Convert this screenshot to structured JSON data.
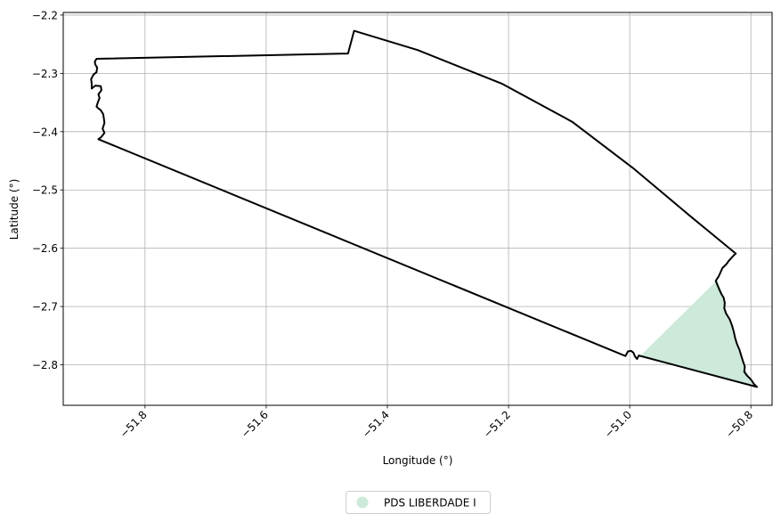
{
  "map": {
    "xlabel": "Longitude (°)",
    "ylabel": "Latitude (°)",
    "xlim": [
      -51.935,
      -50.765
    ],
    "ylim": [
      -2.8695,
      -2.1955
    ],
    "grid": true,
    "x_ticks": [
      -51.8,
      -51.6,
      -51.4,
      -51.2,
      -51.0,
      -50.8
    ],
    "x_tick_labels": [
      "−51.8",
      "−51.6",
      "−51.4",
      "−51.2",
      "−51.0",
      "−50.8"
    ],
    "y_ticks": [
      -2.2,
      -2.3,
      -2.4,
      -2.5,
      -2.6,
      -2.7,
      -2.8
    ],
    "y_tick_labels": [
      "−2.2",
      "−2.3",
      "−2.4",
      "−2.5",
      "−2.6",
      "−2.7",
      "−2.8"
    ],
    "legend": {
      "placement": "bottom-center",
      "entries": [
        {
          "label": "PDS LIBERDADE I",
          "color": "#cce9da",
          "marker": "circle"
        }
      ]
    }
  },
  "chart_data": {
    "type": "map",
    "xlabel": "Longitude (°)",
    "ylabel": "Latitude (°)",
    "xlim": [
      -51.935,
      -50.765
    ],
    "ylim": [
      -2.8695,
      -2.1955
    ],
    "grid": true,
    "boundary": {
      "stroke": "#000000",
      "coordinates": [
        [
          -51.88,
          -2.275
        ],
        [
          -51.465,
          -2.266
        ],
        [
          -51.455,
          -2.227
        ],
        [
          -51.35,
          -2.26
        ],
        [
          -51.21,
          -2.318
        ],
        [
          -51.095,
          -2.383
        ],
        [
          -50.995,
          -2.462
        ],
        [
          -50.9,
          -2.545
        ],
        [
          -50.825,
          -2.609
        ],
        [
          -50.828,
          -2.612
        ],
        [
          -50.836,
          -2.621
        ],
        [
          -50.841,
          -2.628
        ],
        [
          -50.847,
          -2.634
        ],
        [
          -50.85,
          -2.641
        ],
        [
          -50.853,
          -2.648
        ],
        [
          -50.858,
          -2.656
        ],
        [
          -50.855,
          -2.664
        ],
        [
          -50.852,
          -2.671
        ],
        [
          -50.849,
          -2.678
        ],
        [
          -50.845,
          -2.685
        ],
        [
          -50.843,
          -2.694
        ],
        [
          -50.844,
          -2.703
        ],
        [
          -50.841,
          -2.712
        ],
        [
          -50.835,
          -2.722
        ],
        [
          -50.831,
          -2.733
        ],
        [
          -50.828,
          -2.744
        ],
        [
          -50.826,
          -2.754
        ],
        [
          -50.823,
          -2.764
        ],
        [
          -50.819,
          -2.774
        ],
        [
          -50.816,
          -2.784
        ],
        [
          -50.813,
          -2.794
        ],
        [
          -50.81,
          -2.803
        ],
        [
          -50.811,
          -2.812
        ],
        [
          -50.806,
          -2.819
        ],
        [
          -50.801,
          -2.824
        ],
        [
          -50.798,
          -2.828
        ],
        [
          -50.795,
          -2.833
        ],
        [
          -50.79,
          -2.838
        ],
        [
          -50.985,
          -2.784
        ],
        [
          -50.988,
          -2.79
        ],
        [
          -50.991,
          -2.786
        ],
        [
          -50.994,
          -2.779
        ],
        [
          -50.998,
          -2.776
        ],
        [
          -51.003,
          -2.777
        ],
        [
          -51.007,
          -2.785
        ],
        [
          -51.877,
          -2.413
        ],
        [
          -51.872,
          -2.409
        ],
        [
          -51.867,
          -2.402
        ],
        [
          -51.87,
          -2.395
        ],
        [
          -51.867,
          -2.385
        ],
        [
          -51.868,
          -2.377
        ],
        [
          -51.869,
          -2.37
        ],
        [
          -51.872,
          -2.365
        ],
        [
          -51.874,
          -2.362
        ],
        [
          -51.876,
          -2.361
        ],
        [
          -51.88,
          -2.357
        ],
        [
          -51.878,
          -2.35
        ],
        [
          -51.875,
          -2.342
        ],
        [
          -51.877,
          -2.336
        ],
        [
          -51.872,
          -2.329
        ],
        [
          -51.873,
          -2.322
        ],
        [
          -51.882,
          -2.321
        ],
        [
          -51.888,
          -2.326
        ],
        [
          -51.888,
          -2.318
        ],
        [
          -51.889,
          -2.31
        ],
        [
          -51.885,
          -2.302
        ],
        [
          -51.88,
          -2.298
        ],
        [
          -51.879,
          -2.29
        ],
        [
          -51.882,
          -2.285
        ],
        [
          -51.883,
          -2.28
        ],
        [
          -51.88,
          -2.275
        ]
      ]
    },
    "series": [
      {
        "name": "PDS LIBERDADE I",
        "color": "#cce9da",
        "coordinates": [
          [
            -50.855,
            -2.654
          ],
          [
            -50.852,
            -2.664
          ],
          [
            -50.848,
            -2.676
          ],
          [
            -50.845,
            -2.688
          ],
          [
            -50.843,
            -2.7
          ],
          [
            -50.838,
            -2.714
          ],
          [
            -50.832,
            -2.728
          ],
          [
            -50.828,
            -2.742
          ],
          [
            -50.825,
            -2.756
          ],
          [
            -50.821,
            -2.769
          ],
          [
            -50.817,
            -2.782
          ],
          [
            -50.813,
            -2.794
          ],
          [
            -50.81,
            -2.806
          ],
          [
            -50.805,
            -2.816
          ],
          [
            -50.798,
            -2.826
          ],
          [
            -50.79,
            -2.838
          ],
          [
            -50.982,
            -2.784
          ]
        ]
      }
    ]
  }
}
